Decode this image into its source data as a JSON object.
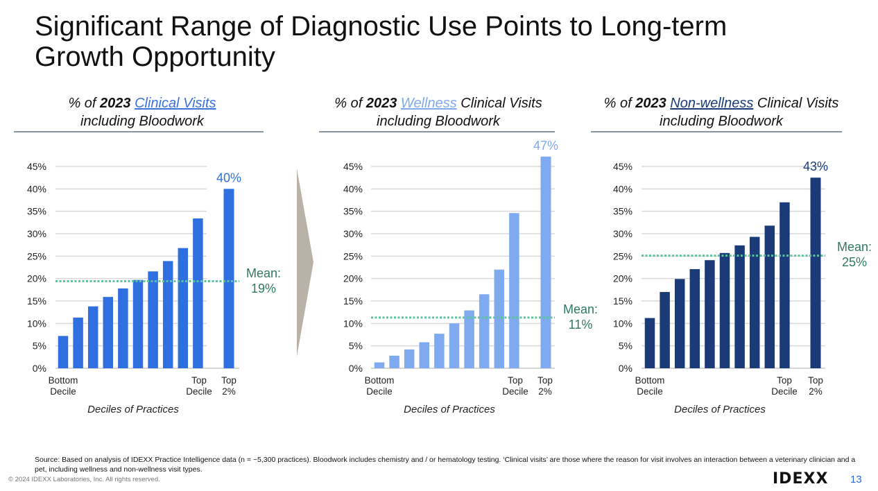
{
  "slide": {
    "title_line1": "Significant Range of Diagnostic Use Points to Long-term",
    "title_line2": "Growth Opportunity",
    "source": "Source:  Based on analysis of IDEXX Practice Intelligence data (n = ~5,300 practices). Bloodwork includes chemistry and / or hematology testing. ‘Clinical visits’ are those where the reason for visit involves an interaction between a veterinary clinician and a pet, including wellness and non-wellness visit types.",
    "copyright": "© 2024 IDEXX Laboratories, Inc. All rights reserved.",
    "logo": "IDEXX",
    "page_number": "13"
  },
  "panels": [
    {
      "pre": "% of ",
      "year": "2023",
      "highlight": "Clinical Visits",
      "post": "",
      "line2": "including Bloodwork",
      "highlight_color": "#3a72e0"
    },
    {
      "pre": "% of ",
      "year": "2023",
      "highlight": "Wellness",
      "post": " Clinical Visits",
      "line2": "including Bloodwork",
      "highlight_color": "#7faaf0"
    },
    {
      "pre": "% of ",
      "year": "2023",
      "highlight": "Non-wellness",
      "post": " Clinical Visits",
      "line2": "including Bloodwork",
      "highlight_color": "#1b3a78"
    }
  ],
  "chart_data": [
    {
      "type": "bar",
      "title": "% of 2023 Clinical Visits including Bloodwork",
      "xlabel": "Deciles of Practices",
      "ylabel": "",
      "ylim": [
        0,
        45
      ],
      "yticks": [
        "0%",
        "5%",
        "10%",
        "15%",
        "20%",
        "25%",
        "30%",
        "35%",
        "40%",
        "45%"
      ],
      "x_tick_labels": {
        "bottom": [
          "Bottom",
          "Decile"
        ],
        "top_decile": [
          "Top",
          "Decile"
        ],
        "top2": [
          "Top",
          "2%"
        ]
      },
      "categories": [
        "Decile 1",
        "Decile 2",
        "Decile 3",
        "Decile 4",
        "Decile 5",
        "Decile 6",
        "Decile 7",
        "Decile 8",
        "Decile 9",
        "Decile 10",
        "Top 2%"
      ],
      "values": [
        7.2,
        11.3,
        13.8,
        15.9,
        17.8,
        19.7,
        21.6,
        23.9,
        26.8,
        33.4,
        40.0
      ],
      "color": "#2f6fe0",
      "data_label": "40%",
      "data_label_color": "#2f6fe0",
      "mean": 19.4,
      "mean_label": [
        "Mean:",
        "19%"
      ],
      "mean_label_color": "#2e7a5e",
      "mean_line_color": "#5cc49a"
    },
    {
      "type": "bar",
      "title": "% of 2023 Wellness Clinical Visits including Bloodwork",
      "xlabel": "Deciles of Practices",
      "ylabel": "",
      "ylim": [
        0,
        45
      ],
      "yticks": [
        "0%",
        "5%",
        "10%",
        "15%",
        "20%",
        "25%",
        "30%",
        "35%",
        "40%",
        "45%"
      ],
      "x_tick_labels": {
        "bottom": [
          "Bottom",
          "Decile"
        ],
        "top_decile": [
          "Top",
          "Decile"
        ],
        "top2": [
          "Top",
          "2%"
        ]
      },
      "categories": [
        "Decile 1",
        "Decile 2",
        "Decile 3",
        "Decile 4",
        "Decile 5",
        "Decile 6",
        "Decile 7",
        "Decile 8",
        "Decile 9",
        "Decile 10",
        "Top 2%"
      ],
      "values": [
        1.3,
        2.8,
        4.2,
        5.8,
        7.7,
        10.0,
        12.9,
        16.5,
        22.0,
        34.6,
        47.2
      ],
      "color": "#7faaf0",
      "data_label": "47%",
      "data_label_color": "#7faaf0",
      "mean": 11.3,
      "mean_label": [
        "Mean:",
        "11%"
      ],
      "mean_label_color": "#2e7a5e",
      "mean_line_color": "#5cc49a"
    },
    {
      "type": "bar",
      "title": "% of 2023 Non-wellness Clinical Visits including Bloodwork",
      "xlabel": "Deciles of Practices",
      "ylabel": "",
      "ylim": [
        0,
        45
      ],
      "yticks": [
        "0%",
        "5%",
        "10%",
        "15%",
        "20%",
        "25%",
        "30%",
        "35%",
        "40%",
        "45%"
      ],
      "x_tick_labels": {
        "bottom": [
          "Bottom",
          "Decile"
        ],
        "top_decile": [
          "Top",
          "Decile"
        ],
        "top2": [
          "Top",
          "2%"
        ]
      },
      "categories": [
        "Decile 1",
        "Decile 2",
        "Decile 3",
        "Decile 4",
        "Decile 5",
        "Decile 6",
        "Decile 7",
        "Decile 8",
        "Decile 9",
        "Decile 10",
        "Top 2%"
      ],
      "values": [
        11.2,
        17.0,
        19.9,
        22.1,
        24.1,
        25.7,
        27.4,
        29.3,
        31.8,
        37.0,
        42.5
      ],
      "color": "#1b3a78",
      "data_label": "43%",
      "data_label_color": "#1b3a78",
      "mean": 25.1,
      "mean_label": [
        "Mean:",
        "25%"
      ],
      "mean_label_color": "#2e7a5e",
      "mean_line_color": "#5cc49a"
    }
  ],
  "colors": {
    "arrow": "#b9b2a8",
    "rule": "#8a93a6",
    "grid": "#d9d9d9"
  }
}
